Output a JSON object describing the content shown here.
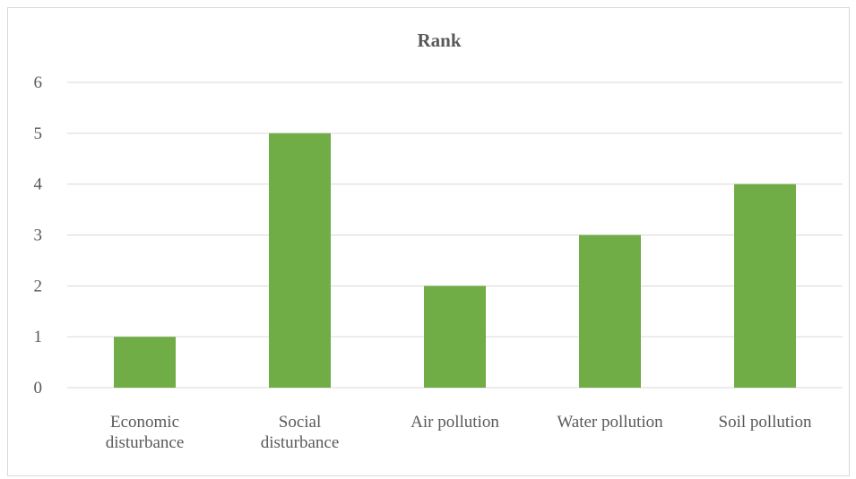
{
  "chart_data": {
    "type": "bar",
    "title": "Rank",
    "categories": [
      [
        "Economic",
        "disturbance"
      ],
      [
        "Social",
        "disturbance"
      ],
      [
        "Air pollution"
      ],
      [
        "Water pollution"
      ],
      [
        "Soil pollution"
      ]
    ],
    "values": [
      1,
      5,
      2,
      3,
      4
    ],
    "ylim": [
      0,
      6
    ],
    "yticks": [
      "0",
      "1",
      "2",
      "3",
      "4",
      "5",
      "6"
    ],
    "grid": true,
    "legend": "none",
    "bar_color": "#70ad47"
  }
}
